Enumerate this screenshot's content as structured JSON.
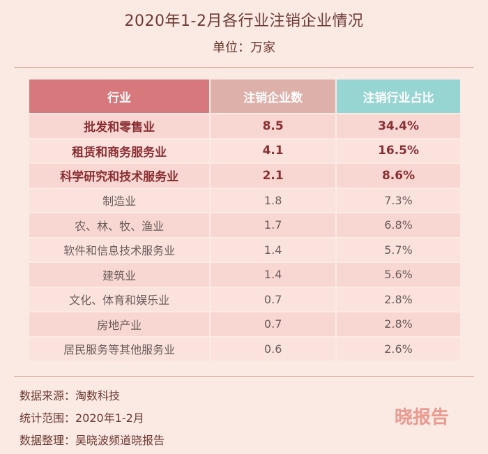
{
  "title": "2020年1-2月各行业注销企业情况",
  "subtitle": "单位：万家",
  "watermark": "晓报告",
  "footer": {
    "source": "数据来源：淘数科技",
    "range": "统计范围：2020年1-2月",
    "compiled": "数据整理：吴晓波频道晓报告"
  },
  "chart_data": {
    "type": "table",
    "title": "2020年1-2月各行业注销企业情况",
    "subtitle": "单位：万家",
    "columns": [
      "行业",
      "注销企业数",
      "注销行业占比"
    ],
    "rows": [
      [
        "批发和零售业",
        "8.5",
        "34.4%"
      ],
      [
        "租赁和商务服务业",
        "4.1",
        "16.5%"
      ],
      [
        "科学研究和技术服务业",
        "2.1",
        "8.6%"
      ],
      [
        "制造业",
        "1.8",
        "7.3%"
      ],
      [
        "农、林、牧、渔业",
        "1.7",
        "6.8%"
      ],
      [
        "软件和信息技术服务业",
        "1.4",
        "5.7%"
      ],
      [
        "建筑业",
        "1.4",
        "5.6%"
      ],
      [
        "文化、体育和娱乐业",
        "0.7",
        "2.8%"
      ],
      [
        "房地产业",
        "0.7",
        "2.8%"
      ],
      [
        "居民服务等其他服务业",
        "0.6",
        "2.6%"
      ]
    ],
    "highlighted_rows": [
      0,
      1,
      2
    ]
  }
}
